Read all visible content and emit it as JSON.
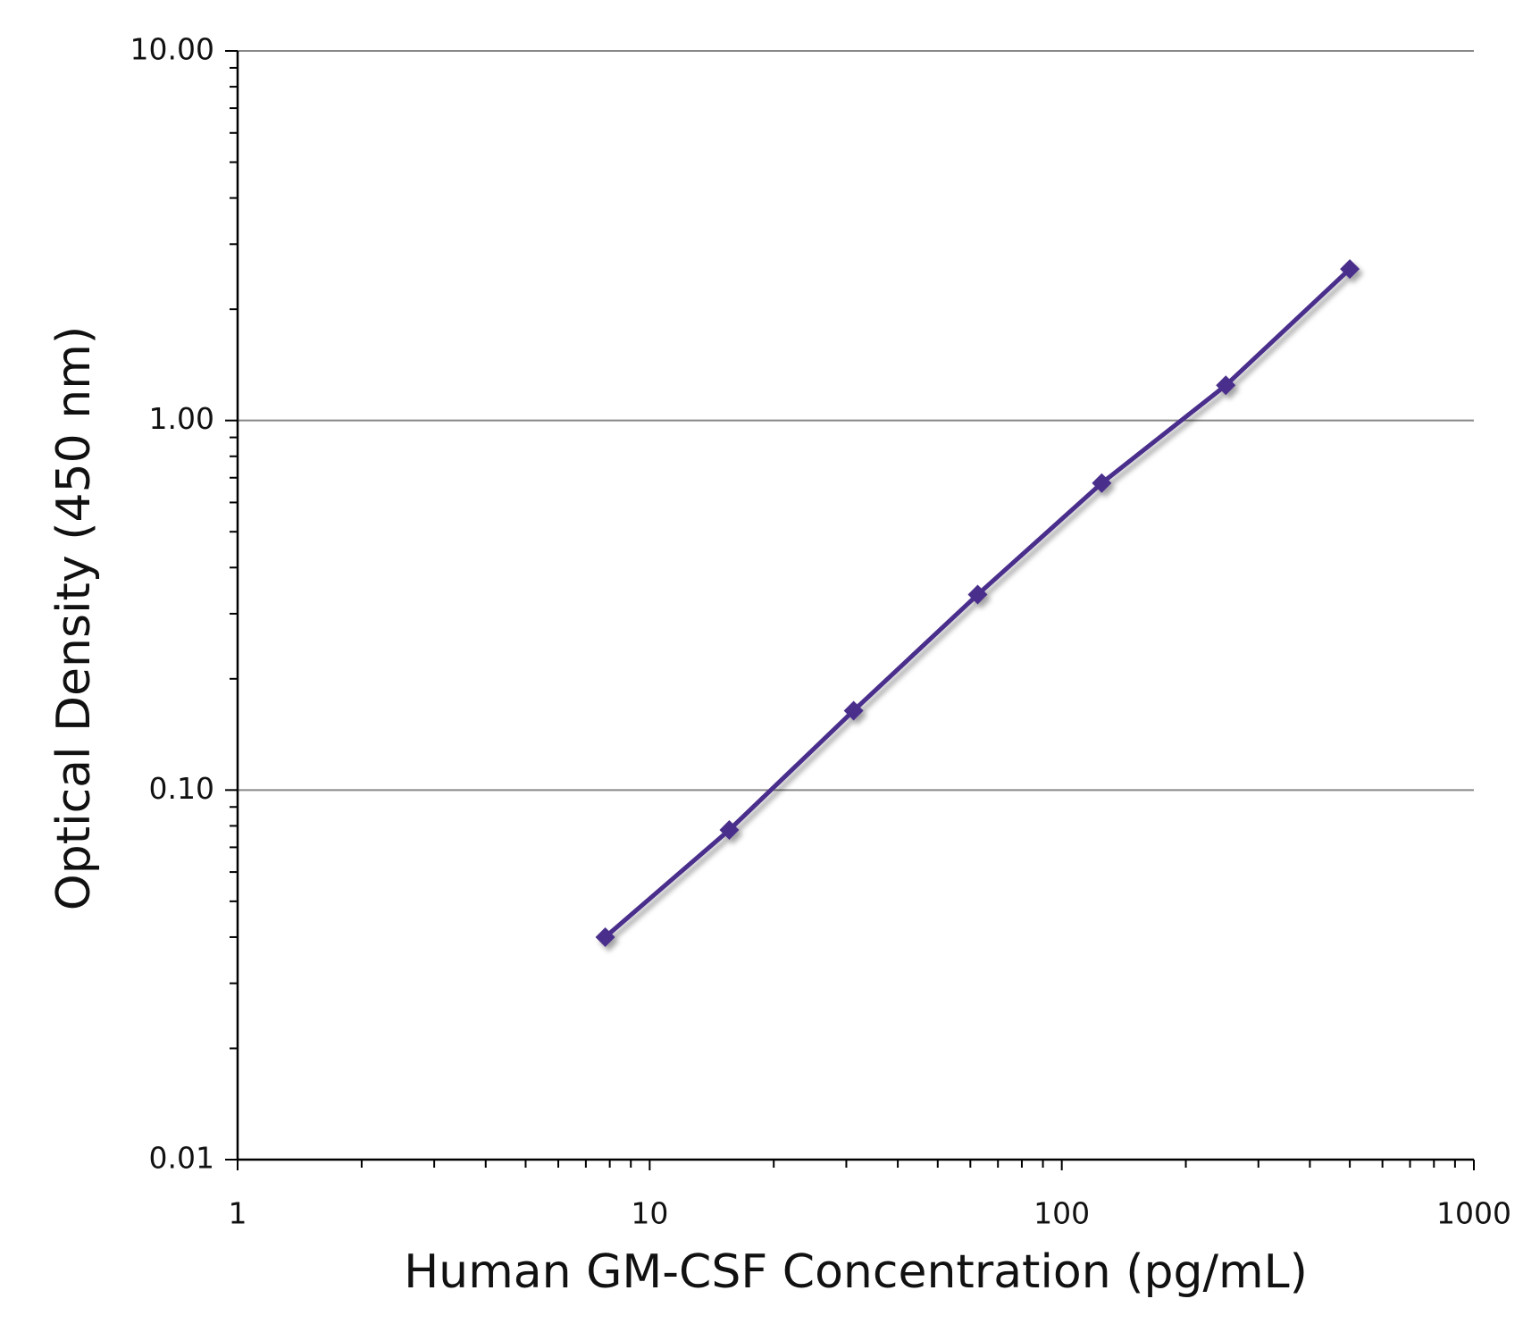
{
  "chart_data": {
    "type": "line",
    "x_label": "Human GM-CSF Concentration (pg/mL)",
    "y_label": "Optical Density (450 nm)",
    "x_scale": "log",
    "y_scale": "log",
    "xlim": [
      1,
      1000
    ],
    "ylim": [
      0.01,
      10
    ],
    "xticks": [
      1,
      10,
      100,
      1000
    ],
    "yticks": [
      {
        "value": 0.01,
        "label": "0.01"
      },
      {
        "value": 0.1,
        "label": "0.10"
      },
      {
        "value": 1,
        "label": "1.00"
      },
      {
        "value": 10,
        "label": "10.00"
      }
    ],
    "x_minor_ticks": [
      2,
      3,
      4,
      5,
      6,
      7,
      8,
      9,
      20,
      30,
      40,
      50,
      60,
      70,
      80,
      90,
      200,
      300,
      400,
      500,
      600,
      700,
      800,
      900
    ],
    "y_minor_ticks": [
      0.02,
      0.03,
      0.04,
      0.05,
      0.06,
      0.07,
      0.08,
      0.09,
      0.2,
      0.3,
      0.4,
      0.5,
      0.6,
      0.7,
      0.8,
      0.9,
      2,
      3,
      4,
      5,
      6,
      7,
      8,
      9
    ],
    "grid": true,
    "x": [
      7.8,
      15.6,
      31.25,
      62.5,
      125,
      250,
      500
    ],
    "series": [
      {
        "name": "Human GM-CSF",
        "color": "#4a2d8c",
        "values": [
          0.04,
          0.078,
          0.164,
          0.338,
          0.677,
          1.245,
          2.57
        ]
      }
    ]
  }
}
